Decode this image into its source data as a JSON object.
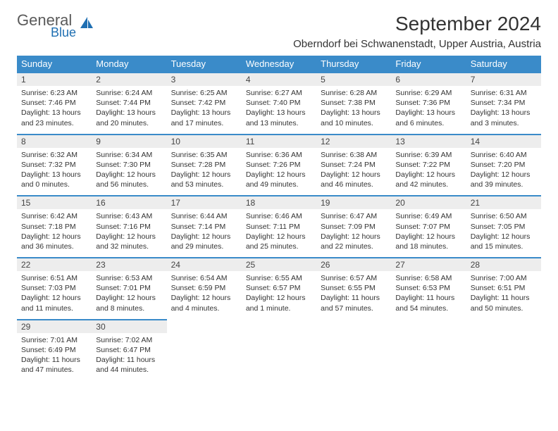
{
  "logo": {
    "general": "General",
    "blue": "Blue"
  },
  "title": "September 2024",
  "location": "Oberndorf bei Schwanenstadt, Upper Austria, Austria",
  "colors": {
    "header_bg": "#3a8bc9",
    "header_fg": "#ffffff",
    "daynum_bg": "#ededed",
    "border": "#3a8bc9",
    "logo_blue": "#1f6fb2",
    "logo_gray": "#5a5a5a"
  },
  "weekdays": [
    "Sunday",
    "Monday",
    "Tuesday",
    "Wednesday",
    "Thursday",
    "Friday",
    "Saturday"
  ],
  "weeks": [
    [
      {
        "n": "1",
        "sr": "Sunrise: 6:23 AM",
        "ss": "Sunset: 7:46 PM",
        "dl": "Daylight: 13 hours and 23 minutes."
      },
      {
        "n": "2",
        "sr": "Sunrise: 6:24 AM",
        "ss": "Sunset: 7:44 PM",
        "dl": "Daylight: 13 hours and 20 minutes."
      },
      {
        "n": "3",
        "sr": "Sunrise: 6:25 AM",
        "ss": "Sunset: 7:42 PM",
        "dl": "Daylight: 13 hours and 17 minutes."
      },
      {
        "n": "4",
        "sr": "Sunrise: 6:27 AM",
        "ss": "Sunset: 7:40 PM",
        "dl": "Daylight: 13 hours and 13 minutes."
      },
      {
        "n": "5",
        "sr": "Sunrise: 6:28 AM",
        "ss": "Sunset: 7:38 PM",
        "dl": "Daylight: 13 hours and 10 minutes."
      },
      {
        "n": "6",
        "sr": "Sunrise: 6:29 AM",
        "ss": "Sunset: 7:36 PM",
        "dl": "Daylight: 13 hours and 6 minutes."
      },
      {
        "n": "7",
        "sr": "Sunrise: 6:31 AM",
        "ss": "Sunset: 7:34 PM",
        "dl": "Daylight: 13 hours and 3 minutes."
      }
    ],
    [
      {
        "n": "8",
        "sr": "Sunrise: 6:32 AM",
        "ss": "Sunset: 7:32 PM",
        "dl": "Daylight: 13 hours and 0 minutes."
      },
      {
        "n": "9",
        "sr": "Sunrise: 6:34 AM",
        "ss": "Sunset: 7:30 PM",
        "dl": "Daylight: 12 hours and 56 minutes."
      },
      {
        "n": "10",
        "sr": "Sunrise: 6:35 AM",
        "ss": "Sunset: 7:28 PM",
        "dl": "Daylight: 12 hours and 53 minutes."
      },
      {
        "n": "11",
        "sr": "Sunrise: 6:36 AM",
        "ss": "Sunset: 7:26 PM",
        "dl": "Daylight: 12 hours and 49 minutes."
      },
      {
        "n": "12",
        "sr": "Sunrise: 6:38 AM",
        "ss": "Sunset: 7:24 PM",
        "dl": "Daylight: 12 hours and 46 minutes."
      },
      {
        "n": "13",
        "sr": "Sunrise: 6:39 AM",
        "ss": "Sunset: 7:22 PM",
        "dl": "Daylight: 12 hours and 42 minutes."
      },
      {
        "n": "14",
        "sr": "Sunrise: 6:40 AM",
        "ss": "Sunset: 7:20 PM",
        "dl": "Daylight: 12 hours and 39 minutes."
      }
    ],
    [
      {
        "n": "15",
        "sr": "Sunrise: 6:42 AM",
        "ss": "Sunset: 7:18 PM",
        "dl": "Daylight: 12 hours and 36 minutes."
      },
      {
        "n": "16",
        "sr": "Sunrise: 6:43 AM",
        "ss": "Sunset: 7:16 PM",
        "dl": "Daylight: 12 hours and 32 minutes."
      },
      {
        "n": "17",
        "sr": "Sunrise: 6:44 AM",
        "ss": "Sunset: 7:14 PM",
        "dl": "Daylight: 12 hours and 29 minutes."
      },
      {
        "n": "18",
        "sr": "Sunrise: 6:46 AM",
        "ss": "Sunset: 7:11 PM",
        "dl": "Daylight: 12 hours and 25 minutes."
      },
      {
        "n": "19",
        "sr": "Sunrise: 6:47 AM",
        "ss": "Sunset: 7:09 PM",
        "dl": "Daylight: 12 hours and 22 minutes."
      },
      {
        "n": "20",
        "sr": "Sunrise: 6:49 AM",
        "ss": "Sunset: 7:07 PM",
        "dl": "Daylight: 12 hours and 18 minutes."
      },
      {
        "n": "21",
        "sr": "Sunrise: 6:50 AM",
        "ss": "Sunset: 7:05 PM",
        "dl": "Daylight: 12 hours and 15 minutes."
      }
    ],
    [
      {
        "n": "22",
        "sr": "Sunrise: 6:51 AM",
        "ss": "Sunset: 7:03 PM",
        "dl": "Daylight: 12 hours and 11 minutes."
      },
      {
        "n": "23",
        "sr": "Sunrise: 6:53 AM",
        "ss": "Sunset: 7:01 PM",
        "dl": "Daylight: 12 hours and 8 minutes."
      },
      {
        "n": "24",
        "sr": "Sunrise: 6:54 AM",
        "ss": "Sunset: 6:59 PM",
        "dl": "Daylight: 12 hours and 4 minutes."
      },
      {
        "n": "25",
        "sr": "Sunrise: 6:55 AM",
        "ss": "Sunset: 6:57 PM",
        "dl": "Daylight: 12 hours and 1 minute."
      },
      {
        "n": "26",
        "sr": "Sunrise: 6:57 AM",
        "ss": "Sunset: 6:55 PM",
        "dl": "Daylight: 11 hours and 57 minutes."
      },
      {
        "n": "27",
        "sr": "Sunrise: 6:58 AM",
        "ss": "Sunset: 6:53 PM",
        "dl": "Daylight: 11 hours and 54 minutes."
      },
      {
        "n": "28",
        "sr": "Sunrise: 7:00 AM",
        "ss": "Sunset: 6:51 PM",
        "dl": "Daylight: 11 hours and 50 minutes."
      }
    ],
    [
      {
        "n": "29",
        "sr": "Sunrise: 7:01 AM",
        "ss": "Sunset: 6:49 PM",
        "dl": "Daylight: 11 hours and 47 minutes."
      },
      {
        "n": "30",
        "sr": "Sunrise: 7:02 AM",
        "ss": "Sunset: 6:47 PM",
        "dl": "Daylight: 11 hours and 44 minutes."
      },
      null,
      null,
      null,
      null,
      null
    ]
  ]
}
